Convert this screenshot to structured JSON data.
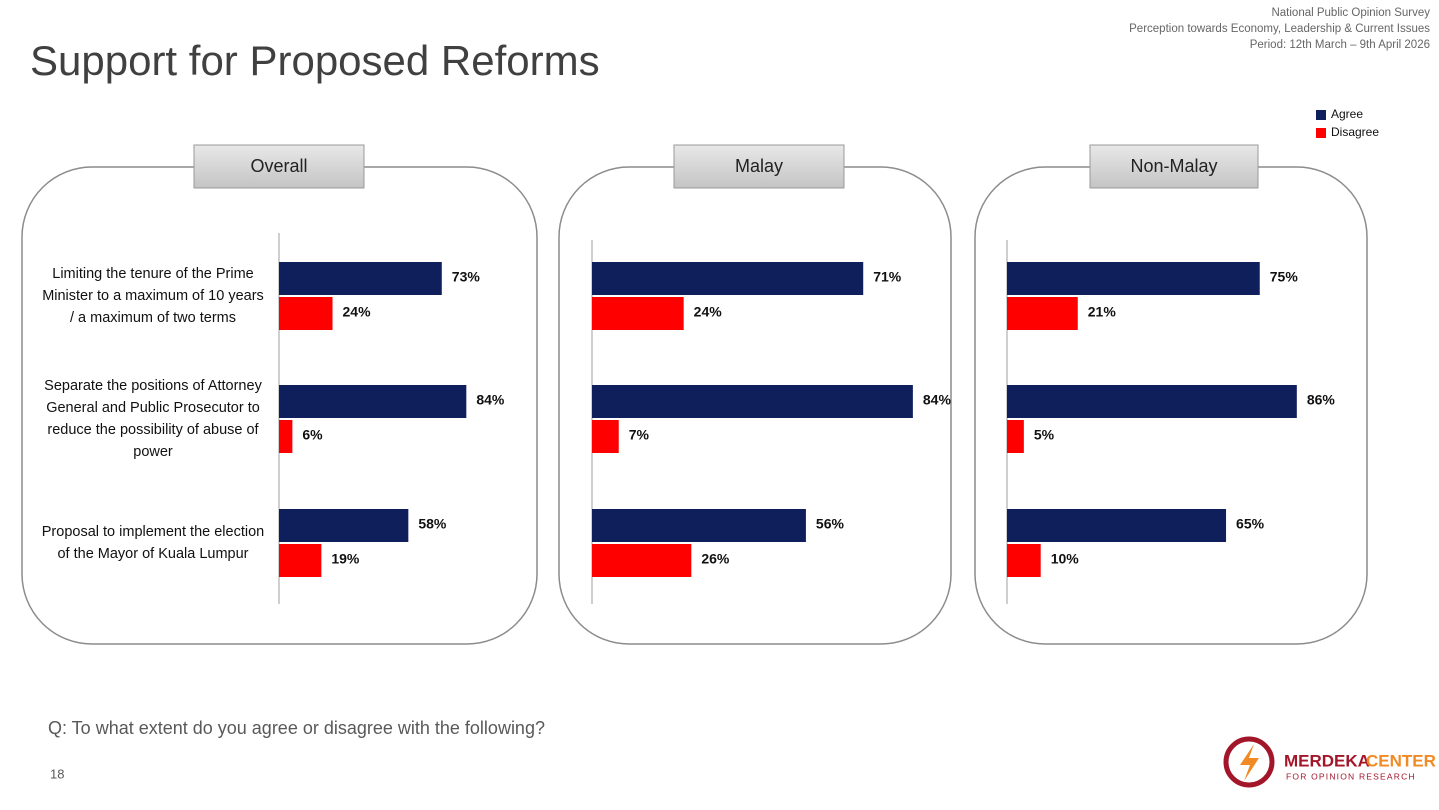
{
  "header": {
    "survey": "National Public Opinion Survey",
    "subtitle": "Perception towards Economy, Leadership & Current Issues",
    "period": "Period: 12th March – 9th April 2026"
  },
  "title": "Support for Proposed Reforms",
  "question": "Q: To what extent do you agree or disagree with the following?",
  "page_number": "18",
  "logo": {
    "name_a": "MERDEKA",
    "name_b": "CENTER",
    "tagline": "FOR OPINION RESEARCH"
  },
  "chart_data": [
    {
      "type": "bar",
      "orientation": "horizontal",
      "title": "Overall",
      "legend": "top-right",
      "categories": [
        "Limiting the tenure of the Prime Minister to a maximum of 10 years / a maximum of two terms",
        "Separate the positions of Attorney General and Public Prosecutor to reduce the possibility of abuse of power",
        "Proposal to implement the election of the Mayor of Kuala Lumpur"
      ],
      "series": [
        {
          "name": "Agree",
          "color": "#0f1f5c",
          "values": [
            73,
            84,
            58
          ],
          "value_labels": [
            "73%",
            "84%",
            "58%"
          ]
        },
        {
          "name": "Disagree",
          "color": "#ff0000",
          "values": [
            24,
            6,
            19
          ],
          "value_labels": [
            "24%",
            "6%",
            "19%"
          ]
        }
      ]
    },
    {
      "type": "bar",
      "orientation": "horizontal",
      "title": "Malay",
      "categories": [
        null,
        null,
        null
      ],
      "series": [
        {
          "color": "#0f1f5c",
          "values": [
            71,
            84,
            56
          ],
          "value_labels": [
            "71%",
            "84%",
            "56%"
          ]
        },
        {
          "color": "#ff0000",
          "values": [
            24,
            7,
            26
          ],
          "value_labels": [
            "24%",
            "7%",
            "26%"
          ]
        }
      ]
    },
    {
      "type": "bar",
      "orientation": "horizontal",
      "title": "Non-Malay",
      "categories": [
        null,
        null,
        null
      ],
      "series": [
        {
          "color": "#0f1f5c",
          "values": [
            75,
            86,
            65
          ],
          "value_labels": [
            "75%",
            "86%",
            "65%"
          ]
        },
        {
          "color": "#ff0000",
          "values": [
            21,
            5,
            10
          ],
          "value_labels": [
            "21%",
            "5%",
            "10%"
          ]
        }
      ]
    }
  ]
}
